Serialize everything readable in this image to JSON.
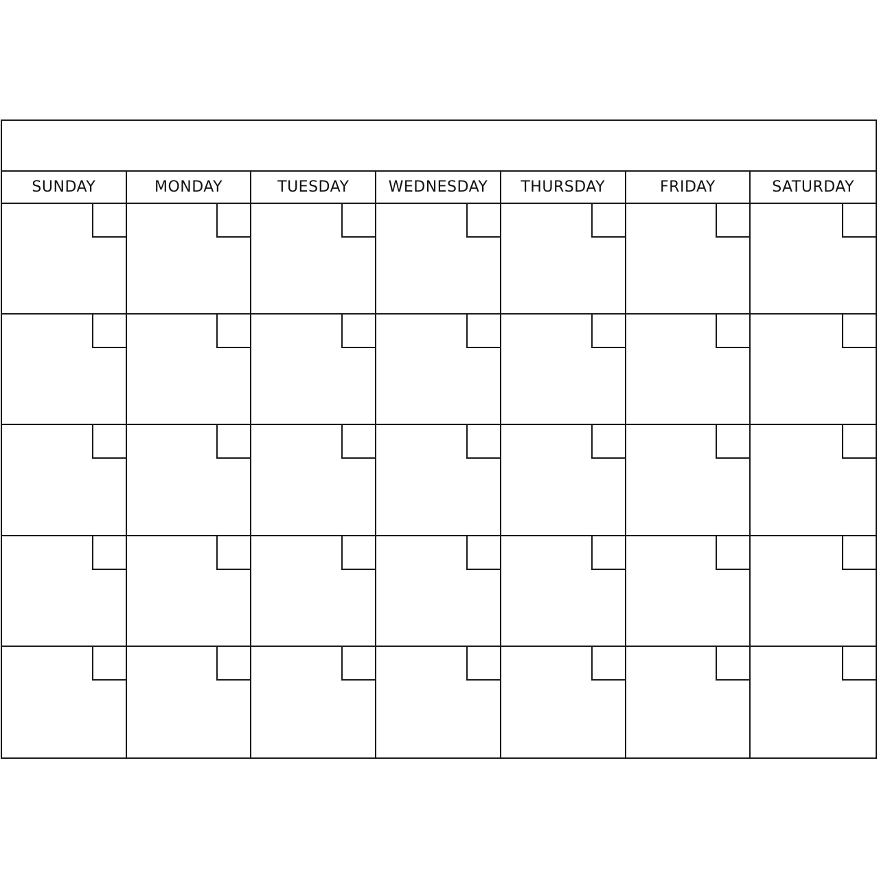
{
  "calendar": {
    "title": "",
    "days": [
      "SUNDAY",
      "MONDAY",
      "TUESDAY",
      "WEDNESDAY",
      "THURSDAY",
      "FRIDAY",
      "SATURDAY"
    ],
    "line_color": "#1a1a1a"
  }
}
